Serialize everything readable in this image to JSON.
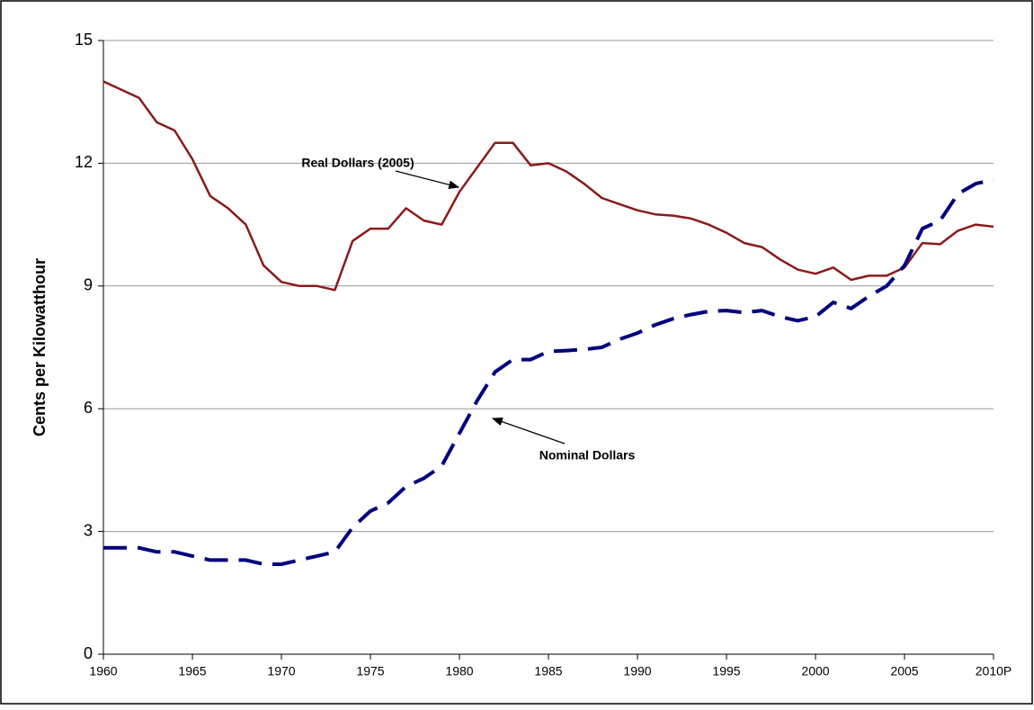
{
  "chart_data": {
    "type": "line",
    "y_label": "Cents per Kilowatthour",
    "x": [
      1960,
      1961,
      1962,
      1963,
      1964,
      1965,
      1966,
      1967,
      1968,
      1969,
      1970,
      1971,
      1972,
      1973,
      1974,
      1975,
      1976,
      1977,
      1978,
      1979,
      1980,
      1981,
      1982,
      1983,
      1984,
      1985,
      1986,
      1987,
      1988,
      1989,
      1990,
      1991,
      1992,
      1993,
      1994,
      1995,
      1996,
      1997,
      1998,
      1999,
      2000,
      2001,
      2002,
      2003,
      2004,
      2005,
      2006,
      2007,
      2008,
      2009,
      2010
    ],
    "series": [
      {
        "name": "Real Dollars (2005)",
        "color": "#8b1a1a",
        "dashed": false,
        "values": [
          14.0,
          13.8,
          13.6,
          13.0,
          12.8,
          12.1,
          11.2,
          10.9,
          10.5,
          9.5,
          9.1,
          9.0,
          9.0,
          8.9,
          10.1,
          10.4,
          10.4,
          10.9,
          10.6,
          10.5,
          11.3,
          11.9,
          12.5,
          12.5,
          11.95,
          12.0,
          11.8,
          11.5,
          11.15,
          11.0,
          10.85,
          10.75,
          10.72,
          10.65,
          10.5,
          10.3,
          10.05,
          9.95,
          9.65,
          9.4,
          9.3,
          9.45,
          9.15,
          9.25,
          9.25,
          9.45,
          10.05,
          10.02,
          10.35,
          10.5,
          10.45
        ]
      },
      {
        "name": "Nominal Dollars",
        "color": "#00007f",
        "dashed": true,
        "values": [
          2.6,
          2.6,
          2.6,
          2.5,
          2.5,
          2.4,
          2.3,
          2.3,
          2.3,
          2.2,
          2.2,
          2.3,
          2.4,
          2.5,
          3.1,
          3.5,
          3.7,
          4.1,
          4.3,
          4.6,
          5.4,
          6.2,
          6.9,
          7.2,
          7.2,
          7.4,
          7.42,
          7.45,
          7.5,
          7.7,
          7.85,
          8.05,
          8.2,
          8.3,
          8.38,
          8.4,
          8.35,
          8.4,
          8.25,
          8.15,
          8.25,
          8.6,
          8.45,
          8.75,
          9.0,
          9.5,
          10.4,
          10.6,
          11.25,
          11.5,
          11.6
        ]
      }
    ],
    "xlim": [
      1960,
      2010
    ],
    "xticks": [
      1960,
      1965,
      1970,
      1975,
      1980,
      1985,
      1990,
      1995,
      2000,
      2005,
      {
        "value": 2010,
        "label": "2010P"
      }
    ],
    "ylim": [
      0,
      15
    ],
    "yticks": [
      0,
      3,
      6,
      9,
      12,
      15
    ],
    "grid": true
  }
}
